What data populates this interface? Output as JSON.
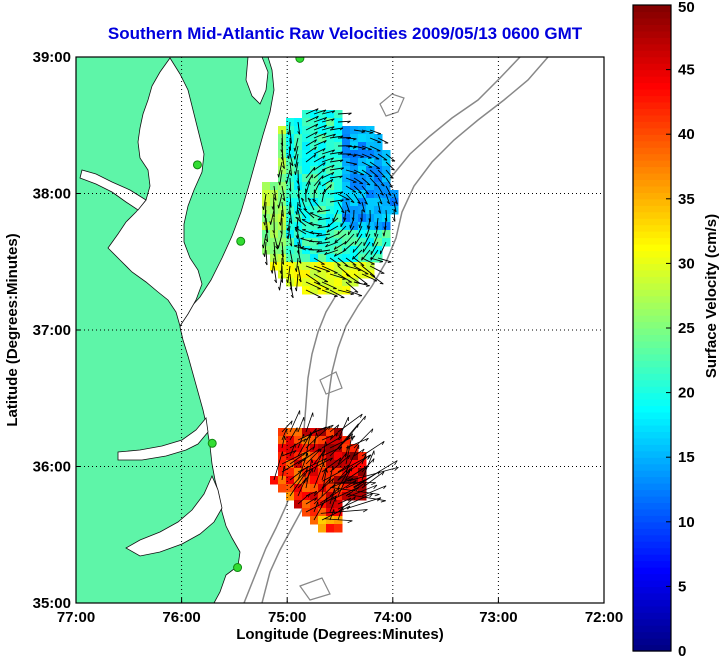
{
  "title": "Southern Mid-Atlantic Raw Velocities 2009/05/13 0600 GMT",
  "map": {
    "xlabel": "Longitude (Degrees:Minutes)",
    "ylabel": "Latitude (Degrees:Minutes)",
    "xlim": [
      -77.0,
      -72.0
    ],
    "ylim": [
      35.0,
      39.0
    ],
    "x_ticks": [
      {
        "value": -77,
        "label": "77:00"
      },
      {
        "value": -76,
        "label": "76:00"
      },
      {
        "value": -75,
        "label": "75:00"
      },
      {
        "value": -74,
        "label": "74:00"
      },
      {
        "value": -73,
        "label": "73:00"
      },
      {
        "value": -72,
        "label": "72:00"
      }
    ],
    "y_ticks": [
      {
        "value": 35,
        "label": "35:00"
      },
      {
        "value": 36,
        "label": "36:00"
      },
      {
        "value": 37,
        "label": "37:00"
      },
      {
        "value": 38,
        "label": "38:00"
      },
      {
        "value": 39,
        "label": "39:00"
      }
    ],
    "grid": "dotted",
    "land_color": "#5ef5a8",
    "station_color": "#33dd33",
    "stations": [
      {
        "lon": -74.88,
        "lat": 38.99
      },
      {
        "lon": -75.85,
        "lat": 38.21
      },
      {
        "lon": -75.44,
        "lat": 37.65
      },
      {
        "lon": -75.71,
        "lat": 36.17
      },
      {
        "lon": -75.47,
        "lat": 35.26
      }
    ]
  },
  "colorbar": {
    "label": "Surface Velocity (cm/s)",
    "min": 0,
    "max": 50,
    "ticks": [
      0,
      5,
      10,
      15,
      20,
      25,
      30,
      35,
      40,
      45,
      50
    ]
  }
}
